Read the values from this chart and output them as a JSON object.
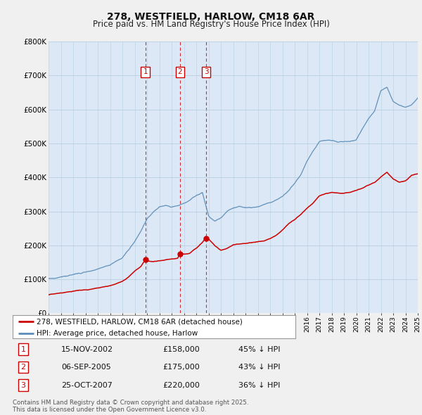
{
  "title": "278, WESTFIELD, HARLOW, CM18 6AR",
  "subtitle": "Price paid vs. HM Land Registry's House Price Index (HPI)",
  "red_line_label": "278, WESTFIELD, HARLOW, CM18 6AR (detached house)",
  "blue_line_label": "HPI: Average price, detached house, Harlow",
  "footer": "Contains HM Land Registry data © Crown copyright and database right 2025.\nThis data is licensed under the Open Government Licence v3.0.",
  "transactions": [
    {
      "num": 1,
      "date": "15-NOV-2002",
      "price": "£158,000",
      "hpi": "45% ↓ HPI",
      "year": 2002.87
    },
    {
      "num": 2,
      "date": "06-SEP-2005",
      "price": "£175,000",
      "hpi": "43% ↓ HPI",
      "year": 2005.68
    },
    {
      "num": 3,
      "date": "25-OCT-2007",
      "price": "£220,000",
      "hpi": "36% ↓ HPI",
      "year": 2007.81
    }
  ],
  "transaction_prices": [
    158000,
    175000,
    220000
  ],
  "ylim": [
    0,
    800000
  ],
  "yticks": [
    0,
    100000,
    200000,
    300000,
    400000,
    500000,
    600000,
    700000,
    800000
  ],
  "ytick_labels": [
    "£0",
    "£100K",
    "£200K",
    "£300K",
    "£400K",
    "£500K",
    "£600K",
    "£700K",
    "£800K"
  ],
  "background_color": "#f0f0f0",
  "plot_bg_color": "#dce8f5",
  "red_color": "#cc0000",
  "blue_color": "#5b8db8",
  "vline_color": "#cc0000",
  "grid_color": "#b8cfe0",
  "hpi_points": [
    [
      1995.0,
      102000
    ],
    [
      1995.5,
      103000
    ],
    [
      1996.0,
      106000
    ],
    [
      1996.5,
      108000
    ],
    [
      1997.0,
      112000
    ],
    [
      1997.5,
      116000
    ],
    [
      1998.0,
      119000
    ],
    [
      1998.5,
      122000
    ],
    [
      1999.0,
      128000
    ],
    [
      1999.5,
      135000
    ],
    [
      2000.0,
      142000
    ],
    [
      2000.5,
      152000
    ],
    [
      2001.0,
      163000
    ],
    [
      2001.5,
      185000
    ],
    [
      2002.0,
      210000
    ],
    [
      2002.5,
      240000
    ],
    [
      2003.0,
      275000
    ],
    [
      2003.5,
      295000
    ],
    [
      2004.0,
      310000
    ],
    [
      2004.5,
      315000
    ],
    [
      2005.0,
      310000
    ],
    [
      2005.5,
      315000
    ],
    [
      2006.0,
      320000
    ],
    [
      2006.5,
      330000
    ],
    [
      2007.0,
      345000
    ],
    [
      2007.5,
      355000
    ],
    [
      2008.0,
      285000
    ],
    [
      2008.5,
      270000
    ],
    [
      2009.0,
      280000
    ],
    [
      2009.5,
      300000
    ],
    [
      2010.0,
      310000
    ],
    [
      2010.5,
      315000
    ],
    [
      2011.0,
      310000
    ],
    [
      2011.5,
      308000
    ],
    [
      2012.0,
      310000
    ],
    [
      2012.5,
      315000
    ],
    [
      2013.0,
      320000
    ],
    [
      2013.5,
      330000
    ],
    [
      2014.0,
      340000
    ],
    [
      2014.5,
      355000
    ],
    [
      2015.0,
      375000
    ],
    [
      2015.5,
      400000
    ],
    [
      2016.0,
      440000
    ],
    [
      2016.5,
      470000
    ],
    [
      2017.0,
      495000
    ],
    [
      2017.5,
      500000
    ],
    [
      2018.0,
      500000
    ],
    [
      2018.5,
      495000
    ],
    [
      2019.0,
      495000
    ],
    [
      2019.5,
      495000
    ],
    [
      2020.0,
      500000
    ],
    [
      2020.5,
      530000
    ],
    [
      2021.0,
      560000
    ],
    [
      2021.5,
      580000
    ],
    [
      2022.0,
      640000
    ],
    [
      2022.5,
      650000
    ],
    [
      2023.0,
      610000
    ],
    [
      2023.5,
      600000
    ],
    [
      2024.0,
      595000
    ],
    [
      2024.5,
      600000
    ],
    [
      2025.0,
      620000
    ]
  ],
  "red_points": [
    [
      1995.0,
      55000
    ],
    [
      1995.5,
      57000
    ],
    [
      1996.0,
      60000
    ],
    [
      1996.5,
      62000
    ],
    [
      1997.0,
      64000
    ],
    [
      1997.5,
      67000
    ],
    [
      1998.0,
      69000
    ],
    [
      1998.5,
      71000
    ],
    [
      1999.0,
      74000
    ],
    [
      1999.5,
      78000
    ],
    [
      2000.0,
      82000
    ],
    [
      2000.5,
      88000
    ],
    [
      2001.0,
      95000
    ],
    [
      2001.5,
      108000
    ],
    [
      2002.0,
      125000
    ],
    [
      2002.5,
      138000
    ],
    [
      2002.87,
      158000
    ],
    [
      2003.0,
      155000
    ],
    [
      2003.5,
      152000
    ],
    [
      2004.0,
      155000
    ],
    [
      2004.5,
      157000
    ],
    [
      2005.0,
      160000
    ],
    [
      2005.5,
      162000
    ],
    [
      2005.68,
      175000
    ],
    [
      2006.0,
      172000
    ],
    [
      2006.5,
      175000
    ],
    [
      2007.0,
      190000
    ],
    [
      2007.5,
      205000
    ],
    [
      2007.81,
      220000
    ],
    [
      2008.0,
      215000
    ],
    [
      2008.5,
      195000
    ],
    [
      2009.0,
      180000
    ],
    [
      2009.5,
      185000
    ],
    [
      2010.0,
      195000
    ],
    [
      2010.5,
      198000
    ],
    [
      2011.0,
      200000
    ],
    [
      2011.5,
      202000
    ],
    [
      2012.0,
      205000
    ],
    [
      2012.5,
      208000
    ],
    [
      2013.0,
      215000
    ],
    [
      2013.5,
      225000
    ],
    [
      2014.0,
      240000
    ],
    [
      2014.5,
      258000
    ],
    [
      2015.0,
      270000
    ],
    [
      2015.5,
      285000
    ],
    [
      2016.0,
      305000
    ],
    [
      2016.5,
      320000
    ],
    [
      2017.0,
      340000
    ],
    [
      2017.5,
      348000
    ],
    [
      2018.0,
      352000
    ],
    [
      2018.5,
      350000
    ],
    [
      2019.0,
      348000
    ],
    [
      2019.5,
      350000
    ],
    [
      2020.0,
      355000
    ],
    [
      2020.5,
      360000
    ],
    [
      2021.0,
      368000
    ],
    [
      2021.5,
      375000
    ],
    [
      2022.0,
      390000
    ],
    [
      2022.5,
      405000
    ],
    [
      2023.0,
      385000
    ],
    [
      2023.5,
      375000
    ],
    [
      2024.0,
      380000
    ],
    [
      2024.5,
      395000
    ],
    [
      2025.0,
      400000
    ]
  ]
}
